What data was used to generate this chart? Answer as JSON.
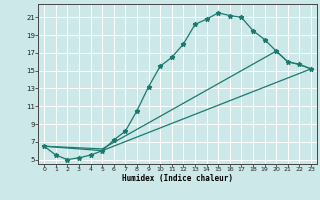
{
  "xlabel": "Humidex (Indice chaleur)",
  "bg_color": "#cce8e8",
  "grid_color": "#ffffff",
  "line_color": "#1a7a6e",
  "xlim": [
    -0.5,
    23.5
  ],
  "ylim": [
    4.5,
    22.5
  ],
  "xticks": [
    0,
    1,
    2,
    3,
    4,
    5,
    6,
    7,
    8,
    9,
    10,
    11,
    12,
    13,
    14,
    15,
    16,
    17,
    18,
    19,
    20,
    21,
    22,
    23
  ],
  "yticks": [
    5,
    7,
    9,
    11,
    13,
    15,
    17,
    19,
    21
  ],
  "line1_x": [
    0,
    1,
    2,
    3,
    4,
    5,
    6,
    7,
    8,
    9,
    10,
    11,
    12,
    13,
    14,
    15,
    16,
    17,
    18,
    19,
    20,
    21,
    22,
    23
  ],
  "line1_y": [
    6.5,
    5.5,
    5.0,
    5.2,
    5.5,
    6.0,
    7.2,
    8.2,
    10.5,
    13.2,
    15.5,
    16.5,
    18.0,
    20.2,
    20.8,
    21.5,
    21.2,
    21.0,
    19.5,
    18.5,
    17.2,
    16.0,
    15.7,
    15.2
  ],
  "line2_x": [
    0,
    5,
    23
  ],
  "line2_y": [
    6.5,
    6.0,
    15.2
  ],
  "line3_x": [
    0,
    5,
    20,
    21,
    22,
    23
  ],
  "line3_y": [
    6.5,
    6.2,
    17.2,
    16.0,
    15.7,
    15.2
  ]
}
